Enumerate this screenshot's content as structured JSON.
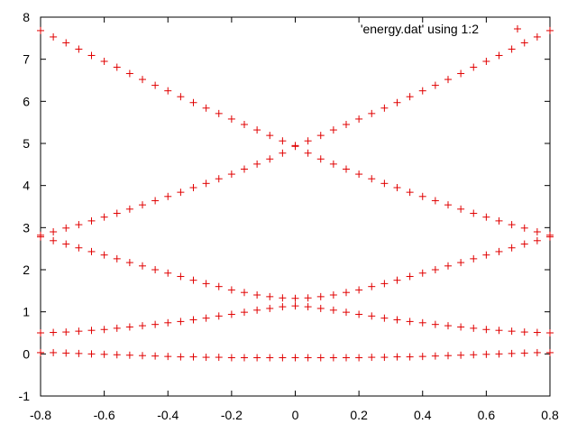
{
  "chart_data": {
    "type": "scatter",
    "legend": {
      "label": "'energy.dat' using 1:2",
      "placement": "top-right"
    },
    "xlim": [
      -0.8,
      0.8
    ],
    "ylim": [
      -1,
      8
    ],
    "xticks": [
      "-0.8",
      "-0.6",
      "-0.4",
      "-0.2",
      "0",
      "0.2",
      "0.4",
      "0.6",
      "0.8"
    ],
    "yticks": [
      "-1",
      "0",
      "1",
      "2",
      "3",
      "4",
      "5",
      "6",
      "7",
      "8"
    ],
    "grid": false,
    "marker": "+",
    "color": "#e00000",
    "x": [
      -0.8,
      -0.76,
      -0.72,
      -0.68,
      -0.64,
      -0.6,
      -0.56,
      -0.52,
      -0.48,
      -0.44,
      -0.4,
      -0.36,
      -0.32,
      -0.28,
      -0.24,
      -0.2,
      -0.16,
      -0.12,
      -0.08,
      -0.04,
      0.0,
      0.04,
      0.08,
      0.12,
      0.16,
      0.2,
      0.24,
      0.28,
      0.32,
      0.36,
      0.4,
      0.44,
      0.48,
      0.52,
      0.56,
      0.6,
      0.64,
      0.68,
      0.72,
      0.76,
      0.8
    ],
    "series": [
      {
        "values": [
          0.03,
          0.03,
          0.02,
          0.01,
          0.0,
          -0.01,
          -0.02,
          -0.03,
          -0.04,
          -0.05,
          -0.06,
          -0.07,
          -0.07,
          -0.08,
          -0.08,
          -0.09,
          -0.09,
          -0.09,
          -0.09,
          -0.09,
          -0.09,
          -0.09,
          -0.09,
          -0.09,
          -0.09,
          -0.09,
          -0.08,
          -0.08,
          -0.07,
          -0.07,
          -0.06,
          -0.05,
          -0.04,
          -0.03,
          -0.02,
          -0.01,
          0.0,
          0.01,
          0.02,
          0.03,
          0.03
        ]
      },
      {
        "values": [
          0.5,
          0.51,
          0.52,
          0.54,
          0.56,
          0.58,
          0.61,
          0.64,
          0.67,
          0.7,
          0.74,
          0.77,
          0.81,
          0.85,
          0.9,
          0.94,
          0.99,
          1.04,
          1.08,
          1.12,
          1.14,
          1.12,
          1.08,
          1.04,
          0.99,
          0.94,
          0.9,
          0.85,
          0.81,
          0.77,
          0.74,
          0.7,
          0.67,
          0.64,
          0.61,
          0.58,
          0.56,
          0.54,
          0.52,
          0.51,
          0.5
        ]
      },
      {
        "values": [
          2.78,
          2.69,
          2.61,
          2.52,
          2.43,
          2.35,
          2.26,
          2.17,
          2.09,
          2.0,
          1.92,
          1.84,
          1.75,
          1.67,
          1.6,
          1.52,
          1.46,
          1.4,
          1.36,
          1.33,
          1.32,
          1.33,
          1.36,
          1.4,
          1.46,
          1.52,
          1.6,
          1.67,
          1.75,
          1.84,
          1.92,
          2.0,
          2.09,
          2.17,
          2.26,
          2.35,
          2.43,
          2.52,
          2.61,
          2.69,
          2.78
        ]
      },
      {
        "values": [
          2.82,
          2.9,
          2.99,
          3.07,
          3.16,
          3.25,
          3.34,
          3.44,
          3.54,
          3.64,
          3.74,
          3.84,
          3.95,
          4.05,
          4.16,
          4.27,
          4.39,
          4.51,
          4.63,
          4.77,
          4.93,
          4.77,
          4.63,
          4.51,
          4.39,
          4.27,
          4.16,
          4.05,
          3.95,
          3.84,
          3.74,
          3.64,
          3.54,
          3.44,
          3.34,
          3.25,
          3.16,
          3.07,
          2.99,
          2.9,
          2.82
        ]
      },
      {
        "values": [
          7.68,
          7.53,
          7.39,
          7.24,
          7.09,
          6.95,
          6.81,
          6.66,
          6.52,
          6.38,
          6.25,
          6.11,
          5.97,
          5.84,
          5.71,
          5.58,
          5.45,
          5.32,
          5.19,
          5.06,
          4.95,
          5.06,
          5.19,
          5.32,
          5.45,
          5.58,
          5.71,
          5.84,
          5.97,
          6.11,
          6.25,
          6.38,
          6.52,
          6.66,
          6.81,
          6.95,
          7.09,
          7.24,
          7.39,
          7.53,
          7.68
        ]
      }
    ]
  }
}
